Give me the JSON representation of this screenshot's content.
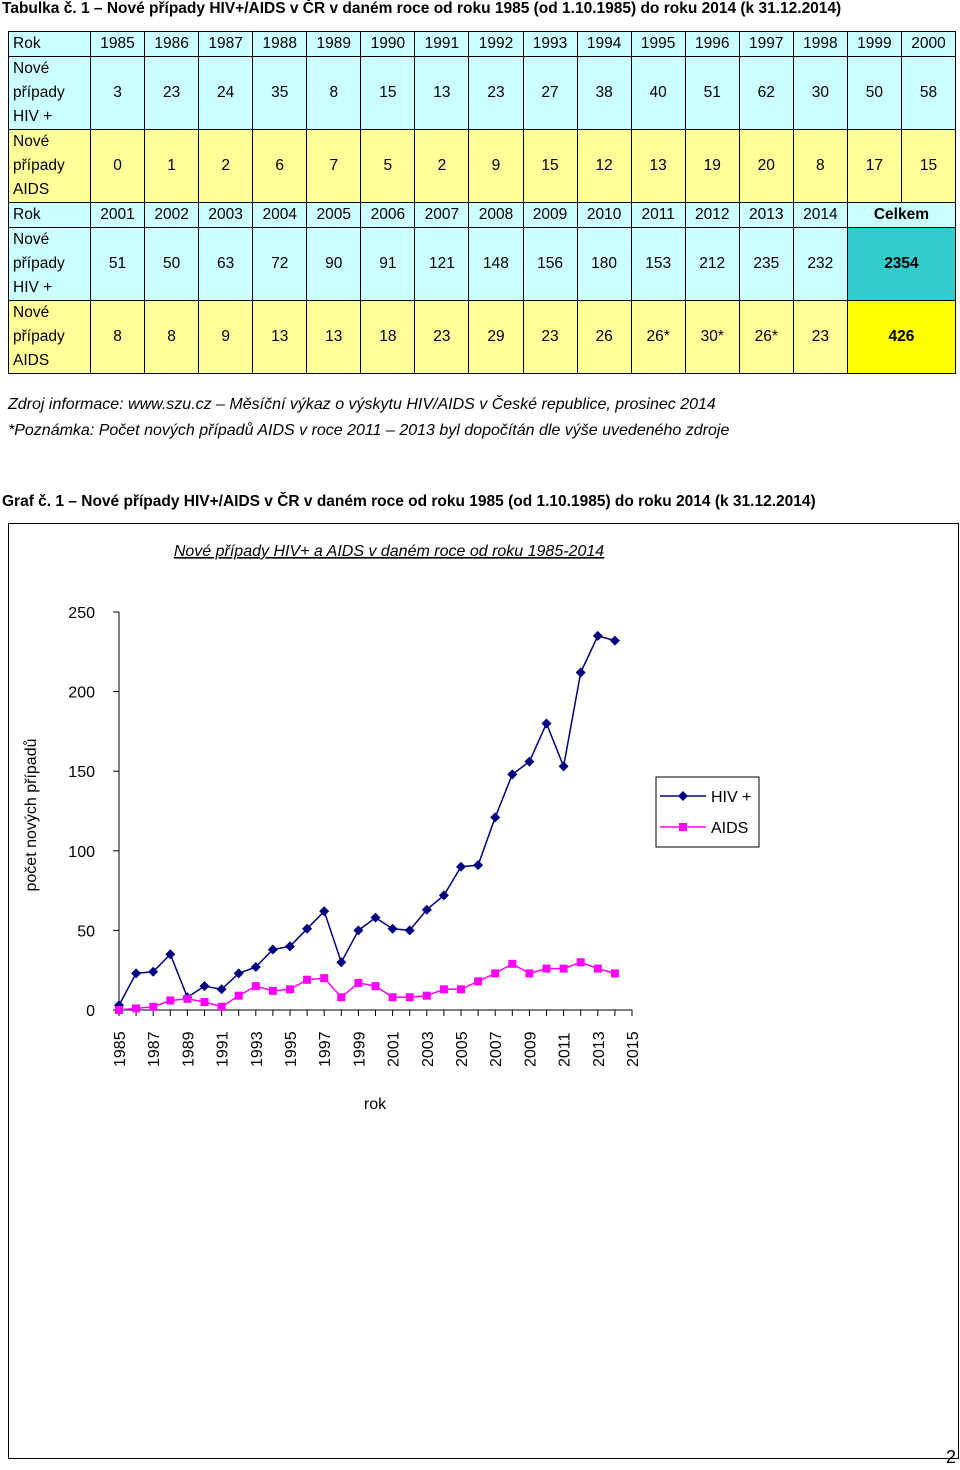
{
  "table_caption": "Tabulka č. 1 – Nové případy HIV+/AIDS v ČR v daném roce od roku 1985 (od 1.10.1985) do roku 2014 (k 31.12.2014)",
  "table": {
    "row_labels": {
      "year": "Rok",
      "hiv_line1": "Nové",
      "hiv_line2": "případy",
      "hiv_line3": "HIV +",
      "aids_line1": "Nové",
      "aids_line2": "případy",
      "aids_line3": "AIDS"
    },
    "part1": {
      "years": [
        "1985",
        "1986",
        "1987",
        "1988",
        "1989",
        "1990",
        "1991",
        "1992",
        "1993",
        "1994",
        "1995",
        "1996",
        "1997",
        "1998",
        "1999",
        "2000"
      ],
      "hiv": [
        "3",
        "23",
        "24",
        "35",
        "8",
        "15",
        "13",
        "23",
        "27",
        "38",
        "40",
        "51",
        "62",
        "30",
        "50",
        "58"
      ],
      "aids": [
        "0",
        "1",
        "2",
        "6",
        "7",
        "5",
        "2",
        "9",
        "15",
        "12",
        "13",
        "19",
        "20",
        "8",
        "17",
        "15"
      ]
    },
    "part2": {
      "years": [
        "2001",
        "2002",
        "2003",
        "2004",
        "2005",
        "2006",
        "2007",
        "2008",
        "2009",
        "2010",
        "2011",
        "2012",
        "2013",
        "2014"
      ],
      "total_label": "Celkem",
      "hiv": [
        "51",
        "50",
        "63",
        "72",
        "90",
        "91",
        "121",
        "148",
        "156",
        "180",
        "153",
        "212",
        "235",
        "232"
      ],
      "aids": [
        "8",
        "8",
        "9",
        "13",
        "13",
        "18",
        "23",
        "29",
        "23",
        "26",
        "26*",
        "30*",
        "26*",
        "23"
      ],
      "hiv_total": "2354",
      "aids_total": "426"
    }
  },
  "source_note": "Zdroj informace: www.szu.cz – Měsíční výkaz o výskytu HIV/AIDS v České republice, prosinec 2014",
  "footnote": "*Poznámka: Počet nových případů AIDS v roce 2011 – 2013 byl dopočítán dle výše uvedeného zdroje",
  "graph_caption": "Graf č. 1 – Nové případy HIV+/AIDS v ČR v daném roce od roku 1985 (od 1.10.1985) do roku 2014 (k 31.12.2014)",
  "page_number": "2",
  "colors": {
    "hiv_series": "#000080",
    "aids_series": "#ff00ff",
    "table_cyan": "#ccffff",
    "table_yellow": "#ffff99",
    "total_teal": "#33cccc",
    "total_yellow": "#ffff00"
  },
  "chart_data": {
    "type": "line",
    "title": "Nové případy HIV+ a AIDS v daném roce od roku 1985-2014",
    "xlabel": "rok",
    "ylabel": "počet nových případů",
    "ylim": [
      0,
      250
    ],
    "xlim": [
      1985,
      2015
    ],
    "yticks": [
      "0",
      "50",
      "100",
      "150",
      "200",
      "250"
    ],
    "xticks": [
      "1985",
      "1987",
      "1989",
      "1991",
      "1993",
      "1995",
      "1997",
      "1999",
      "2001",
      "2003",
      "2005",
      "2007",
      "2009",
      "2011",
      "2013",
      "2015"
    ],
    "grid": false,
    "legend_position": "right",
    "x": [
      1985,
      1986,
      1987,
      1988,
      1989,
      1990,
      1991,
      1992,
      1993,
      1994,
      1995,
      1996,
      1997,
      1998,
      1999,
      2000,
      2001,
      2002,
      2003,
      2004,
      2005,
      2006,
      2007,
      2008,
      2009,
      2010,
      2011,
      2012,
      2013,
      2014
    ],
    "series": [
      {
        "name": "HIV +",
        "color": "#000080",
        "marker": "diamond",
        "values": [
          3,
          23,
          24,
          35,
          8,
          15,
          13,
          23,
          27,
          38,
          40,
          51,
          62,
          30,
          50,
          58,
          51,
          50,
          63,
          72,
          90,
          91,
          121,
          148,
          156,
          180,
          153,
          212,
          235,
          232
        ]
      },
      {
        "name": "AIDS",
        "color": "#ff00ff",
        "marker": "square",
        "values": [
          0,
          1,
          2,
          6,
          7,
          5,
          2,
          9,
          15,
          12,
          13,
          19,
          20,
          8,
          17,
          15,
          8,
          8,
          9,
          13,
          13,
          18,
          23,
          29,
          23,
          26,
          26,
          30,
          26,
          23
        ]
      }
    ]
  }
}
